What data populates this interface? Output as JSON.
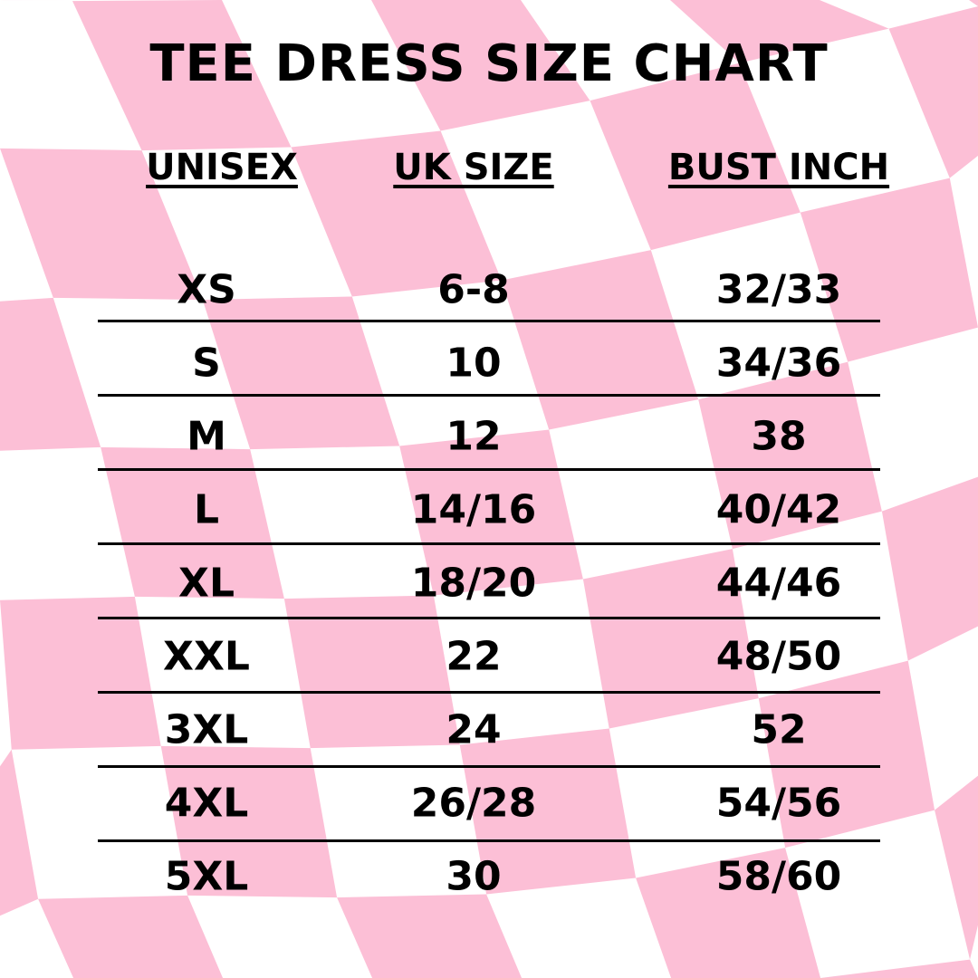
{
  "colors": {
    "pink": "#fcbfd6",
    "white": "#ffffff",
    "text": "#000000"
  },
  "title": "TEE DRESS SIZE CHART",
  "headers": [
    "UNISEX",
    "UK SIZE",
    "BUST INCH"
  ],
  "rows": [
    [
      "XS",
      "6-8",
      "32/33"
    ],
    [
      "S",
      "10",
      "34/36"
    ],
    [
      "M",
      "12",
      "38"
    ],
    [
      "L",
      "14/16",
      "40/42"
    ],
    [
      "XL",
      "18/20",
      "44/46"
    ],
    [
      "XXL",
      "22",
      "48/50"
    ],
    [
      "3XL",
      "24",
      "52"
    ],
    [
      "4XL",
      "26/28",
      "54/56"
    ],
    [
      "5XL",
      "30",
      "58/60"
    ]
  ]
}
